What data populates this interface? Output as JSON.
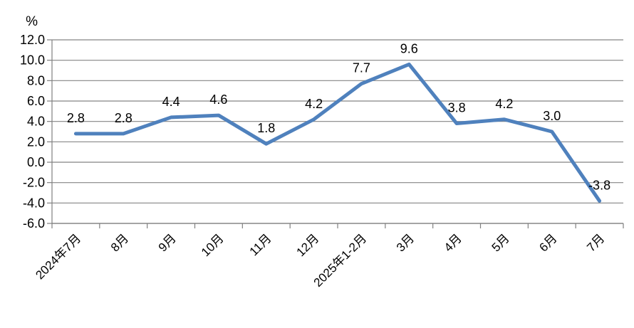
{
  "page": {
    "background_color": "#ffffff"
  },
  "chart_data": {
    "type": "line",
    "title": "",
    "unit_label": "%",
    "categories": [
      "2024年7月",
      "8月",
      "9月",
      "10月",
      "11月",
      "12月",
      "2025年1-2月",
      "3月",
      "4月",
      "5月",
      "6月",
      "7月"
    ],
    "values": [
      2.8,
      2.8,
      4.4,
      4.6,
      1.8,
      4.2,
      7.7,
      9.6,
      3.8,
      4.2,
      3.0,
      -3.8
    ],
    "data_labels": [
      "2.8",
      "2.8",
      "4.4",
      "4.6",
      "1.8",
      "4.2",
      "7.7",
      "9.6",
      "3.8",
      "4.2",
      "3.0",
      "-3.8"
    ],
    "ylim": [
      -6.0,
      12.0
    ],
    "ytick_step": 2.0,
    "ytick_labels": [
      "12.0",
      "10.0",
      "8.0",
      "6.0",
      "4.0",
      "2.0",
      "0.0",
      "-2.0",
      "-4.0",
      "-6.0"
    ],
    "xlabel": "",
    "ylabel": "",
    "grid": true,
    "legend_position": "none",
    "line_color": "#4F81BD",
    "gridline_color": "#848484",
    "axis_color": "#808080",
    "text_color": "#000000"
  }
}
